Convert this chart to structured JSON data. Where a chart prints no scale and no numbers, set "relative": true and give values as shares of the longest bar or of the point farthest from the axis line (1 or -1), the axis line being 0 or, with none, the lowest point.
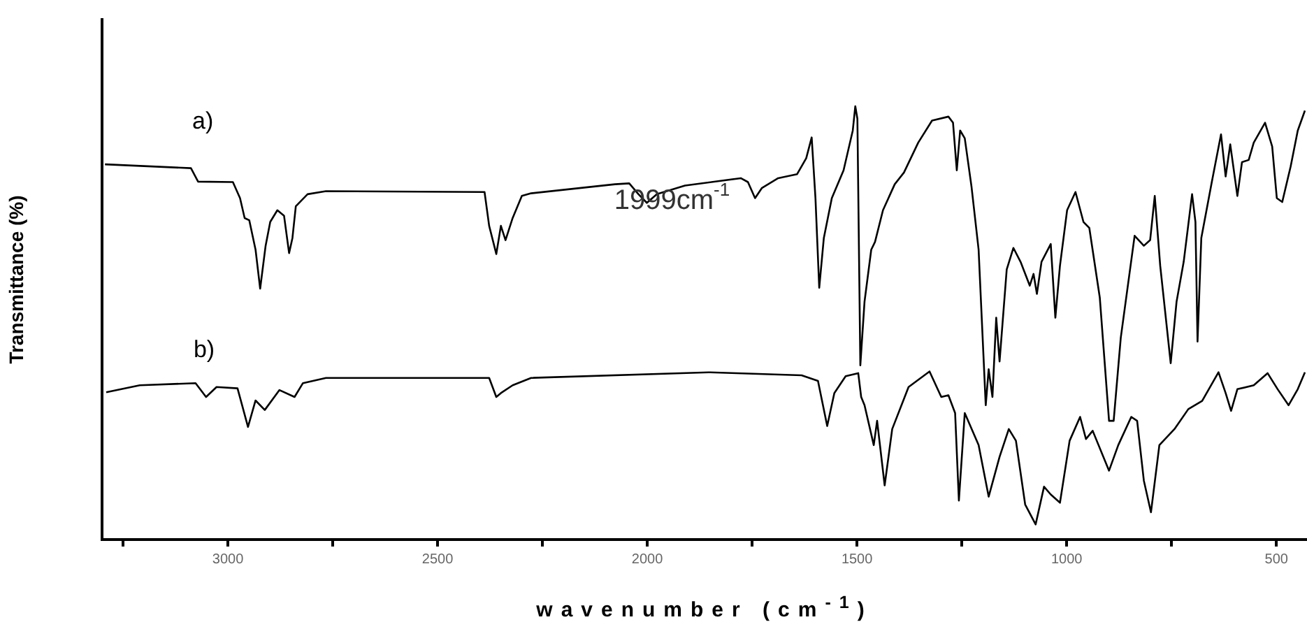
{
  "chart_data": {
    "type": "line",
    "xlabel": "wavenumber (cm$^{-1}$)",
    "ylabel": "Transmittance (%)",
    "relative": true,
    "xlim": [
      3300,
      427
    ],
    "xticks": [
      {
        "value": 3250,
        "label": null
      },
      3000,
      {
        "value": 2750,
        "label": null
      },
      2500,
      {
        "value": 2250,
        "label": null
      },
      2000,
      {
        "value": 1750,
        "label": null
      },
      1500,
      {
        "value": 1250,
        "label": null
      },
      1000,
      {
        "value": 750,
        "label": null
      },
      500
    ],
    "grid": false,
    "legend": false,
    "marker": "none",
    "line_style": "solid",
    "annotations": [
      "1999cm$^{-1}$"
    ],
    "series": [
      {
        "name": "a)",
        "color": "#000000",
        "x": [
          3293,
          3088,
          3071,
          2988,
          2971,
          2960,
          2949,
          2934,
          2923,
          2910,
          2899,
          2882,
          2866,
          2854,
          2846,
          2838,
          2810,
          2766,
          2388,
          2377,
          2360,
          2349,
          2338,
          2321,
          2299,
          2277,
          2077,
          2043,
          2021,
          2001,
          1977,
          1910,
          1777,
          1760,
          1743,
          1727,
          1688,
          1643,
          1621,
          1608,
          1599,
          1590,
          1579,
          1560,
          1532,
          1510,
          1504,
          1499,
          1492,
          1482,
          1466,
          1457,
          1438,
          1410,
          1388,
          1354,
          1321,
          1282,
          1271,
          1262,
          1254,
          1243,
          1227,
          1210,
          1193,
          1186,
          1177,
          1168,
          1160,
          1143,
          1127,
          1110,
          1088,
          1079,
          1071,
          1060,
          1038,
          1027,
          1016,
          999,
          979,
          960,
          946,
          921,
          899,
          888,
          871,
          838,
          816,
          801,
          790,
          777,
          752,
          738,
          721,
          701,
          693,
          688,
          679,
          654,
          632,
          621,
          610,
          593,
          582,
          566,
          554,
          527,
          510,
          499,
          486,
          466,
          449,
          432
        ],
        "values": [
          0.866,
          0.857,
          0.826,
          0.825,
          0.788,
          0.742,
          0.737,
          0.669,
          0.579,
          0.678,
          0.733,
          0.76,
          0.747,
          0.661,
          0.696,
          0.769,
          0.797,
          0.804,
          0.802,
          0.724,
          0.659,
          0.724,
          0.691,
          0.742,
          0.793,
          0.799,
          0.82,
          0.822,
          0.797,
          0.777,
          0.797,
          0.817,
          0.834,
          0.825,
          0.788,
          0.811,
          0.834,
          0.843,
          0.88,
          0.928,
          0.788,
          0.581,
          0.696,
          0.788,
          0.852,
          0.944,
          1,
          0.971,
          0.402,
          0.549,
          0.669,
          0.687,
          0.76,
          0.82,
          0.847,
          0.916,
          0.967,
          0.976,
          0.962,
          0.852,
          0.944,
          0.926,
          0.815,
          0.669,
          0.31,
          0.393,
          0.329,
          0.512,
          0.411,
          0.623,
          0.673,
          0.641,
          0.586,
          0.613,
          0.567,
          0.641,
          0.682,
          0.512,
          0.632,
          0.76,
          0.802,
          0.733,
          0.719,
          0.558,
          0.274,
          0.274,
          0.466,
          0.701,
          0.678,
          0.691,
          0.793,
          0.632,
          0.407,
          0.549,
          0.641,
          0.797,
          0.733,
          0.457,
          0.696,
          0.825,
          0.935,
          0.838,
          0.912,
          0.793,
          0.871,
          0.876,
          0.916,
          0.962,
          0.907,
          0.788,
          0.779,
          0.861,
          0.944,
          0.99
        ]
      },
      {
        "name": "b)",
        "color": "#000000",
        "x": [
          3290,
          3210,
          3077,
          3052,
          3027,
          2977,
          2966,
          2952,
          2934,
          2912,
          2877,
          2841,
          2821,
          2766,
          2377,
          2360,
          2349,
          2321,
          2277,
          1854,
          1632,
          1593,
          1571,
          1554,
          1527,
          1497,
          1490,
          1482,
          1460,
          1452,
          1434,
          1416,
          1377,
          1327,
          1299,
          1282,
          1266,
          1257,
          1243,
          1210,
          1186,
          1160,
          1138,
          1121,
          1099,
          1074,
          1054,
          1038,
          1016,
          993,
          968,
          954,
          938,
          899,
          877,
          846,
          832,
          816,
          799,
          779,
          743,
          710,
          677,
          638,
          621,
          608,
          593,
          554,
          521,
          497,
          471,
          449,
          432
        ],
        "values": [
          0.34,
          0.356,
          0.361,
          0.329,
          0.352,
          0.349,
          0.31,
          0.26,
          0.321,
          0.299,
          0.345,
          0.329,
          0.361,
          0.373,
          0.373,
          0.329,
          0.338,
          0.356,
          0.373,
          0.386,
          0.379,
          0.366,
          0.262,
          0.338,
          0.377,
          0.384,
          0.329,
          0.31,
          0.218,
          0.274,
          0.125,
          0.255,
          0.352,
          0.388,
          0.329,
          0.333,
          0.292,
          0.09,
          0.292,
          0.218,
          0.099,
          0.191,
          0.255,
          0.228,
          0.081,
          0.035,
          0.122,
          0.104,
          0.085,
          0.228,
          0.283,
          0.232,
          0.251,
          0.159,
          0.218,
          0.283,
          0.274,
          0.136,
          0.063,
          0.218,
          0.255,
          0.301,
          0.32,
          0.386,
          0.338,
          0.297,
          0.347,
          0.356,
          0.384,
          0.347,
          0.31,
          0.347,
          0.386
        ]
      }
    ]
  }
}
